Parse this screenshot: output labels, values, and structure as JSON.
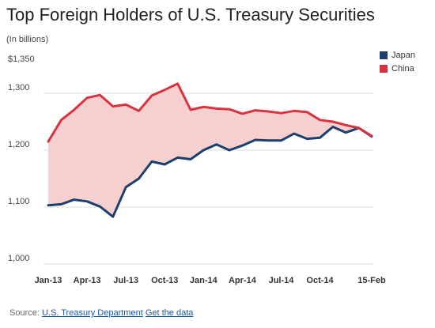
{
  "header": {
    "title": "Top Foreign Holders of U.S. Treasury Securities",
    "subtitle": "(In billions)"
  },
  "footer": {
    "source_label": "Source:",
    "source_link": "U.S. Treasury Department",
    "data_link": "Get the data"
  },
  "colors": {
    "japan": "#1d3f6e",
    "china": "#d9333f",
    "fill": "#f6cfcf",
    "grid": "#dddddd"
  },
  "chart_data": {
    "type": "line",
    "title": "Top Foreign Holders of U.S. Treasury Securities",
    "subtitle": "(In billions)",
    "ylim": [
      1000,
      1350
    ],
    "y_ticks": [
      {
        "value": 1350,
        "label": "$1,350"
      },
      {
        "value": 1300,
        "label": "1,300"
      },
      {
        "value": 1200,
        "label": "1,200"
      },
      {
        "value": 1100,
        "label": "1,100"
      },
      {
        "value": 1000,
        "label": "1,000"
      }
    ],
    "x": [
      "Jan-13",
      "Feb-13",
      "Mar-13",
      "Apr-13",
      "May-13",
      "Jun-13",
      "Jul-13",
      "Aug-13",
      "Sep-13",
      "Oct-13",
      "Nov-13",
      "Dec-13",
      "Jan-14",
      "Feb-14",
      "Mar-14",
      "Apr-14",
      "May-14",
      "Jun-14",
      "Jul-14",
      "Aug-14",
      "Sep-14",
      "Oct-14",
      "Nov-14",
      "Dec-14",
      "Jan-15",
      "Feb-15"
    ],
    "x_tick_labels": [
      {
        "index": 0,
        "label": "Jan-13"
      },
      {
        "index": 3,
        "label": "Apr-13"
      },
      {
        "index": 6,
        "label": "Jul-13"
      },
      {
        "index": 9,
        "label": "Oct-13"
      },
      {
        "index": 12,
        "label": "Jan-14"
      },
      {
        "index": 15,
        "label": "Apr-14"
      },
      {
        "index": 18,
        "label": "Jul-14"
      },
      {
        "index": 21,
        "label": "Oct-14"
      },
      {
        "index": 25,
        "label": "15-Feb"
      }
    ],
    "series": [
      {
        "name": "Japan",
        "color": "#1d3f6e",
        "values": [
          1103,
          1105,
          1113,
          1110,
          1101,
          1083,
          1135,
          1150,
          1180,
          1175,
          1187,
          1184,
          1200,
          1210,
          1200,
          1208,
          1218,
          1217,
          1217,
          1229,
          1220,
          1222,
          1241,
          1231,
          1239,
          1224
        ]
      },
      {
        "name": "China",
        "color": "#d9333f",
        "values": [
          1215,
          1253,
          1271,
          1292,
          1297,
          1277,
          1280,
          1269,
          1296,
          1306,
          1317,
          1271,
          1276,
          1273,
          1272,
          1264,
          1270,
          1268,
          1265,
          1269,
          1267,
          1253,
          1250,
          1244,
          1239,
          1225
        ]
      }
    ],
    "grid": true,
    "legend": "top-right",
    "fill_between": true
  }
}
